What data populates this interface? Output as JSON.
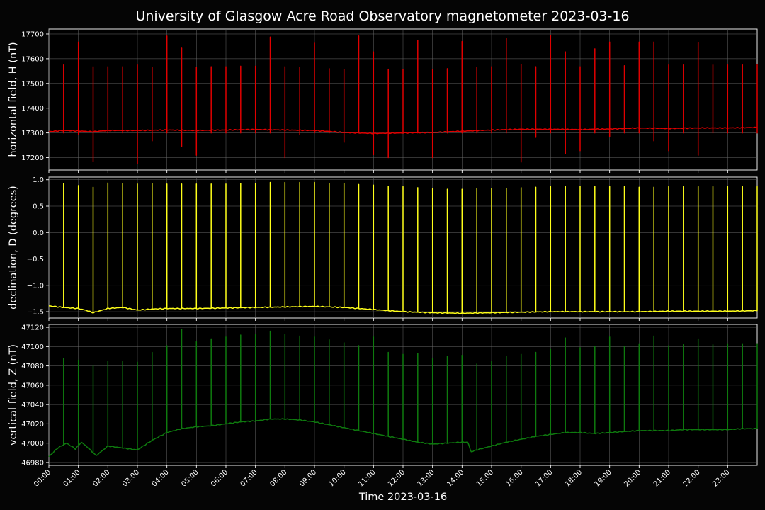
{
  "chart_data": {
    "title": "University of Glasgow Acre Road Observatory magnetometer 2023-03-16",
    "xlabel": "Time 2023-03-16",
    "x_ticks": [
      "00:00",
      "01:00",
      "02:00",
      "03:00",
      "04:00",
      "05:00",
      "06:00",
      "07:00",
      "08:00",
      "09:00",
      "10:00",
      "11:00",
      "12:00",
      "13:00",
      "14:00",
      "15:00",
      "16:00",
      "17:00",
      "18:00",
      "19:00",
      "20:00",
      "21:00",
      "22:00",
      "23:00"
    ],
    "xlim_hours": [
      0,
      24
    ],
    "grid": true,
    "panels": [
      {
        "type": "line",
        "ylabel": "horizontal field, H (nT)",
        "color": "#e00000",
        "ylim": [
          17150,
          17720
        ],
        "yticks": [
          17200,
          17300,
          17400,
          17500,
          17600,
          17700
        ],
        "baseline": {
          "hours": [
            0,
            0.5,
            1,
            1.5,
            2,
            3,
            4,
            5,
            6,
            7,
            8,
            9,
            10,
            11,
            12,
            13,
            14,
            15,
            16,
            17,
            18,
            19,
            20,
            21,
            22,
            23,
            24
          ],
          "values": [
            17305,
            17310,
            17308,
            17305,
            17310,
            17310,
            17312,
            17310,
            17312,
            17314,
            17312,
            17310,
            17302,
            17298,
            17300,
            17302,
            17307,
            17312,
            17315,
            17315,
            17314,
            17316,
            17320,
            17318,
            17320,
            17320,
            17322
          ]
        },
        "spikes": {
          "hours": [
            0.5,
            1,
            1.5,
            2,
            2.5,
            3,
            3.5,
            4,
            4.5,
            5,
            5.5,
            6,
            6.5,
            7,
            7.5,
            8,
            8.5,
            9,
            9.5,
            10,
            10.5,
            11,
            11.5,
            12,
            12.5,
            13,
            13.5,
            14,
            14.5,
            15,
            15.5,
            16,
            16.5,
            17,
            17.5,
            18,
            18.5,
            19,
            19.5,
            20,
            20.5,
            21,
            21.5,
            22,
            22.5,
            23,
            23.5,
            24
          ],
          "max": [
            17575,
            17668,
            17568,
            17568,
            17568,
            17575,
            17565,
            17692,
            17643,
            17565,
            17568,
            17568,
            17570,
            17570,
            17688,
            17568,
            17565,
            17663,
            17560,
            17558,
            17692,
            17628,
            17558,
            17558,
            17675,
            17558,
            17560,
            17670,
            17565,
            17568,
            17682,
            17578,
            17568,
            17695,
            17628,
            17568,
            17640,
            17668,
            17572,
            17668,
            17668,
            17575,
            17575,
            17665,
            17575,
            17575,
            17575,
            17575
          ],
          "min": [
            17300,
            17295,
            17185,
            17300,
            17300,
            17175,
            17268,
            17300,
            17245,
            17210,
            17300,
            17300,
            17300,
            17300,
            17300,
            17200,
            17292,
            17300,
            17300,
            17262,
            17300,
            17212,
            17200,
            17300,
            17300,
            17200,
            17300,
            17300,
            17300,
            17300,
            17300,
            17182,
            17282,
            17300,
            17215,
            17228,
            17300,
            17285,
            17300,
            17300,
            17268,
            17228,
            17300,
            17210,
            17300,
            17300,
            17300,
            17300
          ]
        }
      },
      {
        "type": "line",
        "ylabel": "declination, D (degrees)",
        "color": "#ffff1a",
        "ylim": [
          -1.62,
          1.05
        ],
        "yticks": [
          -1.5,
          -1.0,
          -0.5,
          0.0,
          0.5,
          1.0
        ],
        "ytick_labels": [
          "−1.5",
          "−1.0",
          "−0.5",
          "0.0",
          "0.5",
          "1.0"
        ],
        "baseline": {
          "hours": [
            0,
            0.5,
            1,
            1.3,
            1.5,
            2,
            2.5,
            3,
            3.5,
            4,
            5,
            6,
            7,
            8,
            9,
            10,
            10.5,
            11,
            11.5,
            12,
            13,
            14,
            15,
            16,
            17,
            18,
            19,
            20,
            21,
            22,
            23,
            24
          ],
          "values": [
            -1.39,
            -1.42,
            -1.44,
            -1.48,
            -1.52,
            -1.44,
            -1.42,
            -1.47,
            -1.45,
            -1.44,
            -1.44,
            -1.43,
            -1.42,
            -1.41,
            -1.4,
            -1.42,
            -1.44,
            -1.46,
            -1.48,
            -1.5,
            -1.52,
            -1.53,
            -1.52,
            -1.51,
            -1.5,
            -1.5,
            -1.5,
            -1.5,
            -1.49,
            -1.49,
            -1.49,
            -1.48
          ]
        },
        "spikes": {
          "hours": [
            0.5,
            1,
            1.5,
            2,
            2.5,
            3,
            3.5,
            4,
            4.5,
            5,
            5.5,
            6,
            6.5,
            7,
            7.5,
            8,
            8.5,
            9,
            9.5,
            10,
            10.5,
            11,
            11.5,
            12,
            12.5,
            13,
            13.5,
            14,
            14.5,
            15,
            15.5,
            16,
            16.5,
            17,
            17.5,
            18,
            18.5,
            19,
            19.5,
            20,
            20.5,
            21,
            21.5,
            22,
            22.5,
            23,
            23.5,
            24
          ],
          "max": [
            0.93,
            0.89,
            0.86,
            0.94,
            0.93,
            0.92,
            0.93,
            0.92,
            0.92,
            0.92,
            0.92,
            0.92,
            0.93,
            0.93,
            0.95,
            0.95,
            0.95,
            0.95,
            0.93,
            0.93,
            0.91,
            0.9,
            0.88,
            0.87,
            0.85,
            0.83,
            0.82,
            0.82,
            0.83,
            0.84,
            0.84,
            0.85,
            0.86,
            0.87,
            0.87,
            0.88,
            0.87,
            0.87,
            0.87,
            0.86,
            0.86,
            0.87,
            0.87,
            0.87,
            0.87,
            0.87,
            0.87,
            0.87
          ]
        }
      },
      {
        "type": "line",
        "ylabel": "vertical field, Z (nT)",
        "color": "#0e7a0e",
        "ylim": [
          46977,
          47123
        ],
        "yticks": [
          46980,
          47000,
          47020,
          47040,
          47060,
          47080,
          47100,
          47120
        ],
        "baseline": {
          "hours": [
            0,
            0.3,
            0.6,
            0.9,
            1.1,
            1.3,
            1.6,
            2,
            2.5,
            3,
            3.5,
            4,
            4.5,
            5,
            5.5,
            6,
            6.5,
            7,
            7.5,
            8,
            8.5,
            9,
            9.5,
            10,
            10.5,
            11,
            11.5,
            12,
            12.5,
            13,
            13.5,
            14,
            14.2,
            14.3,
            14.5,
            15,
            15.5,
            16,
            16.5,
            17,
            17.5,
            18,
            18.5,
            19,
            19.5,
            20,
            20.5,
            21,
            21.5,
            22,
            22.5,
            23,
            23.5,
            24
          ],
          "values": [
            46986,
            46995,
            47000,
            46994,
            47001,
            46996,
            46987,
            46997,
            46995,
            46993,
            47003,
            47011,
            47015,
            47017,
            47018,
            47020,
            47022,
            47023,
            47025,
            47025,
            47024,
            47022,
            47019,
            47016,
            47013,
            47010,
            47007,
            47004,
            47001,
            46999,
            47000,
            47001,
            47001,
            46991,
            46993,
            46997,
            47001,
            47004,
            47007,
            47009,
            47011,
            47011,
            47010,
            47011,
            47012,
            47013,
            47013,
            47013,
            47014,
            47014,
            47014,
            47014,
            47015,
            47015
          ]
        },
        "spikes": {
          "hours": [
            0.5,
            1,
            1.5,
            2,
            2.5,
            3,
            3.5,
            4,
            4.5,
            5,
            5.5,
            6,
            6.5,
            7,
            7.5,
            8,
            8.5,
            9,
            9.5,
            10,
            10.5,
            11,
            11.5,
            12,
            12.5,
            13,
            13.5,
            14,
            14.5,
            15,
            15.5,
            16,
            16.5,
            17,
            17.5,
            18,
            18.5,
            19,
            19.5,
            20,
            20.5,
            21,
            21.5,
            22,
            22.5,
            23,
            23.5,
            24
          ],
          "max": [
            47088,
            47086,
            47080,
            47085,
            47085,
            47084,
            47094,
            47101,
            47118,
            47105,
            47108,
            47110,
            47112,
            47113,
            47116,
            47113,
            47111,
            47110,
            47107,
            47104,
            47101,
            47110,
            47094,
            47092,
            47093,
            47088,
            47090,
            47091,
            47082,
            47085,
            47090,
            47092,
            47094,
            47097,
            47109,
            47099,
            47100,
            47110,
            47100,
            47103,
            47111,
            47101,
            47102,
            47108,
            47102,
            47103,
            47103,
            47103
          ]
        }
      }
    ]
  }
}
